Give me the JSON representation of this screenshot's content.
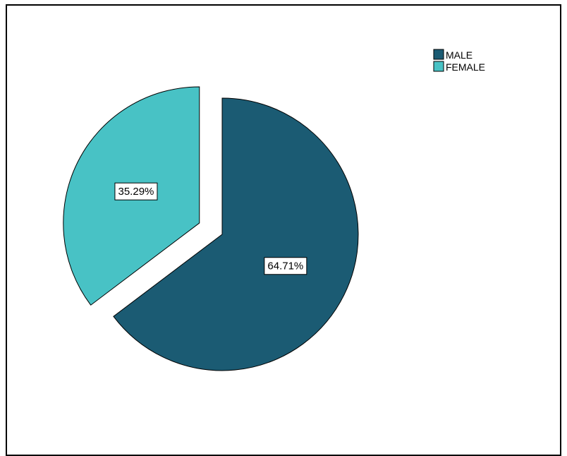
{
  "chart_data": {
    "type": "pie",
    "title": "",
    "categories": [
      "MALE",
      "FEMALE"
    ],
    "values": [
      64.71,
      35.29
    ],
    "data_labels": [
      "64.71%",
      "35.29%"
    ],
    "colors": [
      "#1b5b73",
      "#48c2c5"
    ],
    "exploded": [
      "FEMALE"
    ],
    "legend": {
      "placement": "top-right",
      "entries": [
        "MALE",
        "FEMALE"
      ]
    }
  }
}
